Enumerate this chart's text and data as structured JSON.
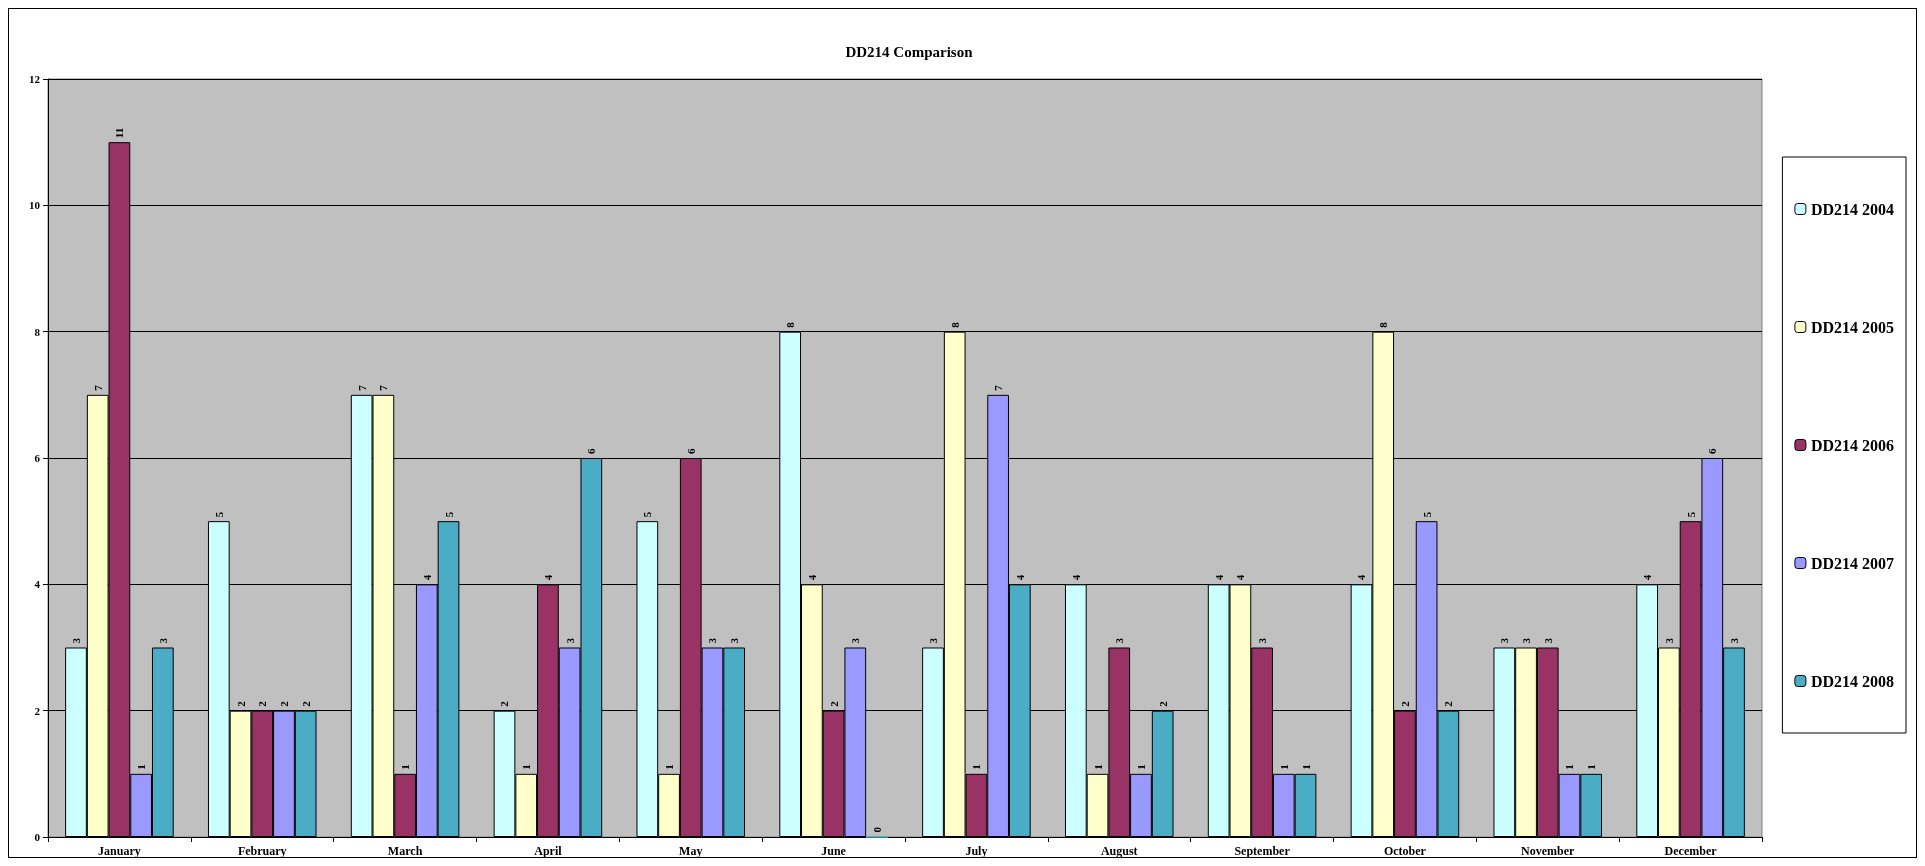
{
  "chart_data": {
    "type": "bar",
    "title": "DD214 Comparison",
    "categories": [
      "January",
      "February",
      "March",
      "April",
      "May",
      "June",
      "July",
      "August",
      "September",
      "October",
      "November",
      "December"
    ],
    "series": [
      {
        "name": "DD214 2004",
        "color": "#ccffff",
        "values": [
          3,
          5,
          7,
          2,
          5,
          8,
          3,
          4,
          4,
          4,
          3,
          4
        ]
      },
      {
        "name": "DD214 2005",
        "color": "#ffffcc",
        "values": [
          7,
          2,
          7,
          1,
          1,
          4,
          8,
          1,
          4,
          8,
          3,
          3
        ]
      },
      {
        "name": "DD214 2006",
        "color": "#993366",
        "values": [
          11,
          2,
          1,
          4,
          6,
          2,
          1,
          3,
          3,
          2,
          3,
          5
        ]
      },
      {
        "name": "DD214 2007",
        "color": "#9999ff",
        "values": [
          1,
          2,
          4,
          3,
          3,
          3,
          7,
          1,
          1,
          5,
          1,
          6
        ]
      },
      {
        "name": "DD214 2008",
        "color": "#4bacc6",
        "values": [
          3,
          2,
          5,
          6,
          3,
          0,
          4,
          2,
          1,
          2,
          1,
          3
        ]
      }
    ],
    "ylim": [
      0,
      12
    ],
    "yticks": [
      0,
      2,
      4,
      6,
      8,
      10,
      12
    ],
    "grid": "y",
    "legend": "right",
    "data_labels": true
  }
}
